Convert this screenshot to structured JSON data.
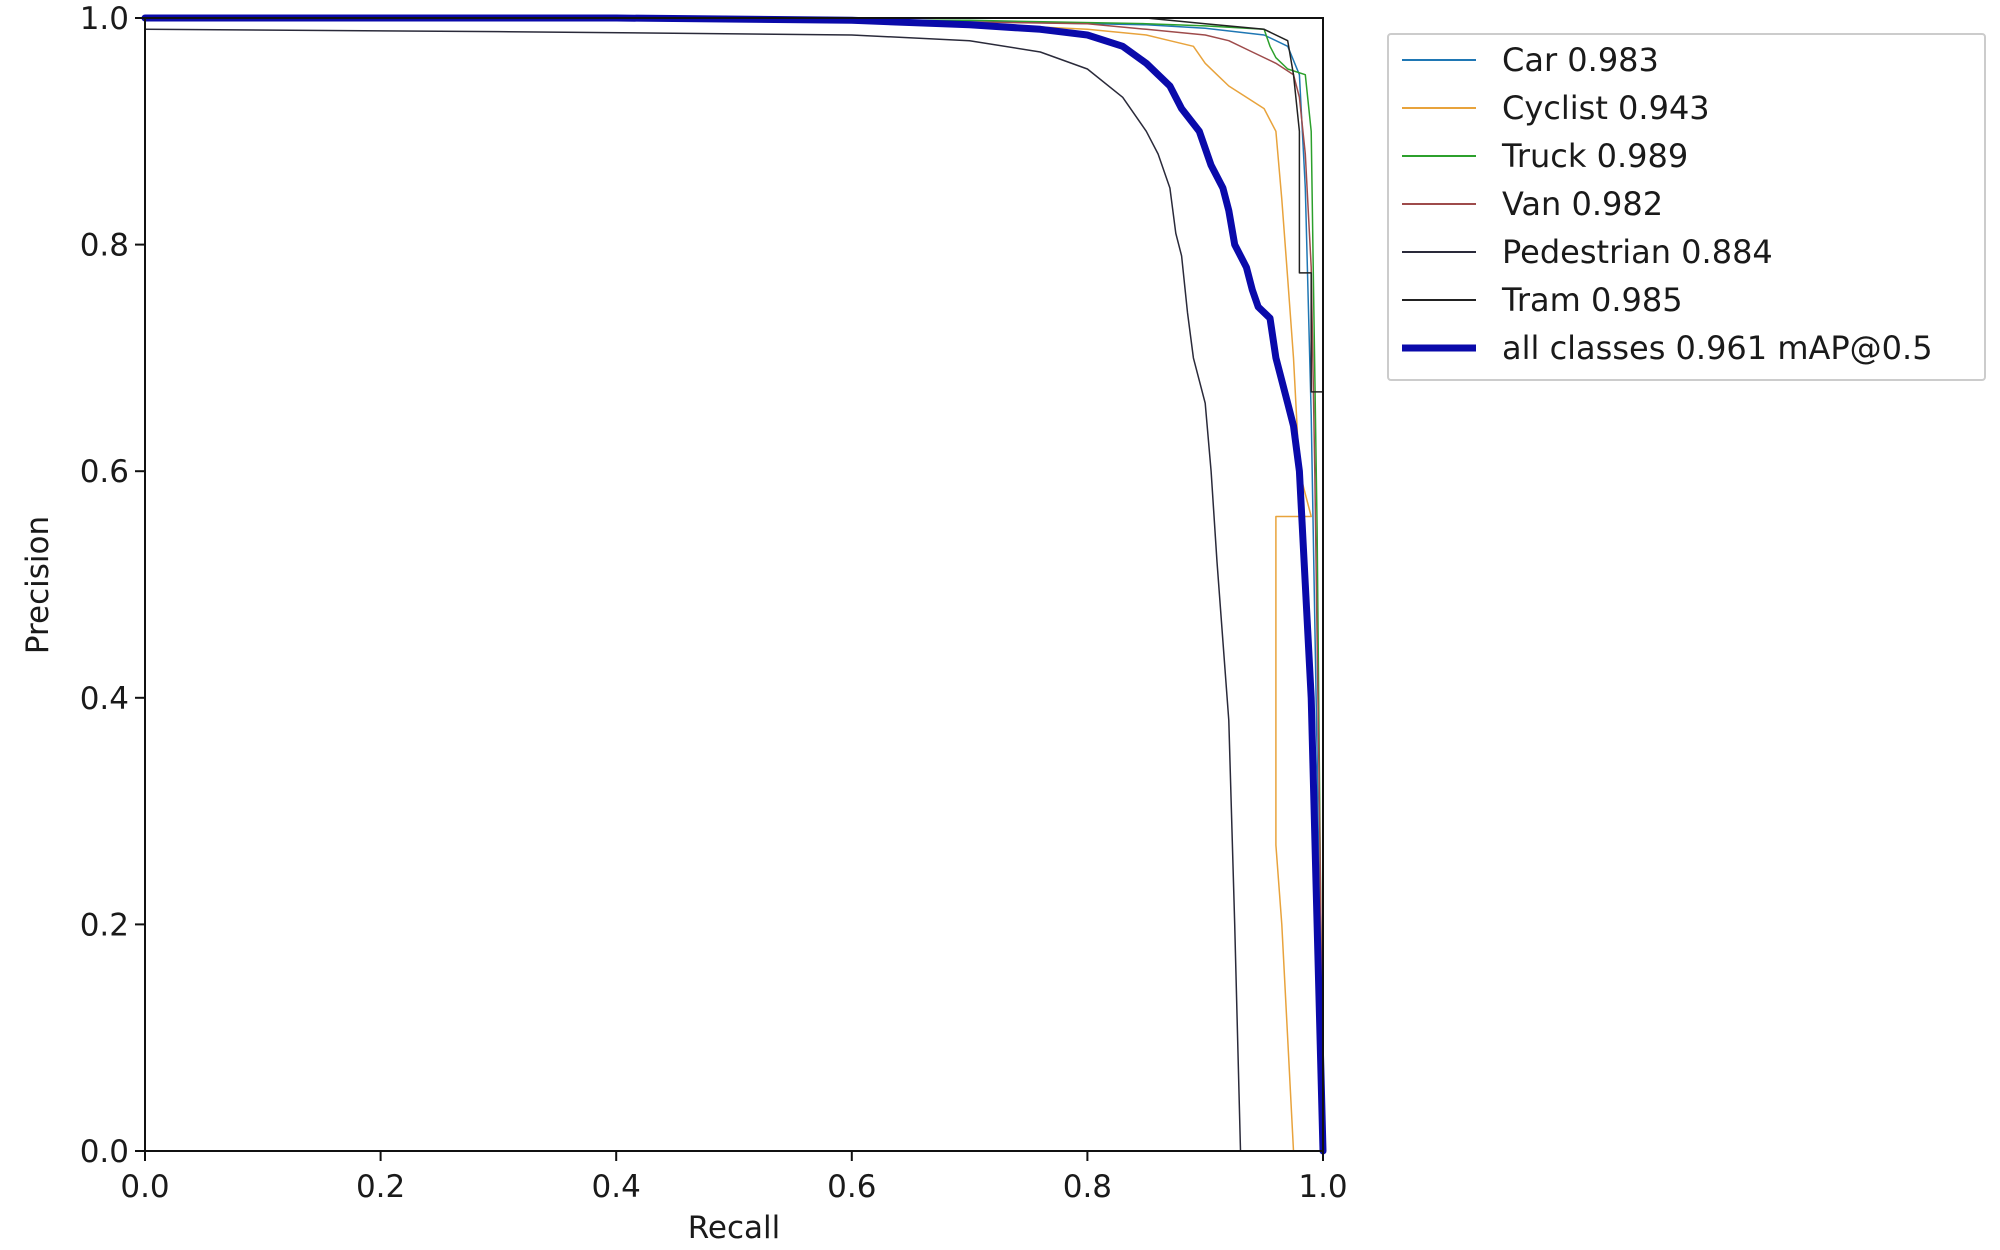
{
  "chart_data": {
    "type": "line",
    "title": "",
    "xlabel": "Recall",
    "ylabel": "Precision",
    "xlim": [
      0,
      1
    ],
    "ylim": [
      0,
      1
    ],
    "xticks": [
      "0.0",
      "0.2",
      "0.4",
      "0.6",
      "0.8",
      "1.0"
    ],
    "yticks": [
      "0.0",
      "0.2",
      "0.4",
      "0.6",
      "0.8",
      "1.0"
    ],
    "grid": false,
    "legend_position": "outside-top-right",
    "series": [
      {
        "name": "Car 0.983",
        "color": "#1f77b4",
        "width": 1.5,
        "points": [
          [
            0,
            1.0
          ],
          [
            0.6,
            0.998
          ],
          [
            0.75,
            0.996
          ],
          [
            0.85,
            0.994
          ],
          [
            0.9,
            0.991
          ],
          [
            0.95,
            0.985
          ],
          [
            0.97,
            0.975
          ],
          [
            0.98,
            0.95
          ],
          [
            0.985,
            0.85
          ],
          [
            0.99,
            0.65
          ],
          [
            0.995,
            0.35
          ],
          [
            1.0,
            0.0
          ]
        ]
      },
      {
        "name": "Cyclist 0.943",
        "color": "#e8a33c",
        "width": 1.5,
        "points": [
          [
            0,
            1.0
          ],
          [
            0.55,
            0.999
          ],
          [
            0.7,
            0.995
          ],
          [
            0.8,
            0.99
          ],
          [
            0.85,
            0.985
          ],
          [
            0.87,
            0.98
          ],
          [
            0.89,
            0.975
          ],
          [
            0.9,
            0.96
          ],
          [
            0.91,
            0.95
          ],
          [
            0.92,
            0.94
          ],
          [
            0.935,
            0.93
          ],
          [
            0.95,
            0.92
          ],
          [
            0.955,
            0.91
          ],
          [
            0.96,
            0.9
          ],
          [
            0.965,
            0.84
          ],
          [
            0.97,
            0.77
          ],
          [
            0.975,
            0.7
          ],
          [
            0.98,
            0.6
          ],
          [
            0.985,
            0.58
          ],
          [
            0.99,
            0.56
          ],
          [
            0.96,
            0.56
          ],
          [
            0.96,
            0.27
          ],
          [
            0.965,
            0.2
          ],
          [
            0.975,
            0.0
          ]
        ]
      },
      {
        "name": "Truck 0.989",
        "color": "#2ca02c",
        "width": 1.5,
        "points": [
          [
            0,
            1.0
          ],
          [
            0.7,
            0.998
          ],
          [
            0.85,
            0.995
          ],
          [
            0.9,
            0.993
          ],
          [
            0.95,
            0.99
          ],
          [
            0.955,
            0.975
          ],
          [
            0.96,
            0.965
          ],
          [
            0.97,
            0.955
          ],
          [
            0.985,
            0.95
          ],
          [
            0.99,
            0.9
          ],
          [
            0.995,
            0.55
          ],
          [
            1.0,
            0.0
          ]
        ]
      },
      {
        "name": "Van 0.982",
        "color": "#9e4b4b",
        "width": 1.5,
        "points": [
          [
            0,
            1.0
          ],
          [
            0.6,
            0.998
          ],
          [
            0.8,
            0.995
          ],
          [
            0.85,
            0.99
          ],
          [
            0.9,
            0.985
          ],
          [
            0.92,
            0.98
          ],
          [
            0.94,
            0.97
          ],
          [
            0.96,
            0.96
          ],
          [
            0.975,
            0.95
          ],
          [
            0.98,
            0.93
          ],
          [
            0.985,
            0.88
          ],
          [
            0.99,
            0.78
          ],
          [
            0.993,
            0.6
          ],
          [
            0.997,
            0.3
          ],
          [
            1.0,
            0.05
          ]
        ]
      },
      {
        "name": "Pedestrian 0.884",
        "color": "#2a2a3a",
        "width": 1.5,
        "points": [
          [
            0,
            0.99
          ],
          [
            0.3,
            0.988
          ],
          [
            0.6,
            0.985
          ],
          [
            0.7,
            0.98
          ],
          [
            0.76,
            0.97
          ],
          [
            0.8,
            0.955
          ],
          [
            0.83,
            0.93
          ],
          [
            0.85,
            0.9
          ],
          [
            0.86,
            0.88
          ],
          [
            0.87,
            0.85
          ],
          [
            0.875,
            0.81
          ],
          [
            0.88,
            0.79
          ],
          [
            0.885,
            0.74
          ],
          [
            0.89,
            0.7
          ],
          [
            0.9,
            0.66
          ],
          [
            0.905,
            0.6
          ],
          [
            0.91,
            0.52
          ],
          [
            0.915,
            0.45
          ],
          [
            0.92,
            0.38
          ],
          [
            0.925,
            0.2
          ],
          [
            0.93,
            0.0
          ]
        ]
      },
      {
        "name": "Tram 0.985",
        "color": "#222222",
        "width": 1.5,
        "points": [
          [
            0,
            1.0
          ],
          [
            0.4,
            1.0
          ],
          [
            0.85,
            1.0
          ],
          [
            0.9,
            0.995
          ],
          [
            0.95,
            0.99
          ],
          [
            0.97,
            0.98
          ],
          [
            0.975,
            0.95
          ],
          [
            0.98,
            0.9
          ],
          [
            0.98,
            0.775
          ],
          [
            0.99,
            0.775
          ],
          [
            0.99,
            0.67
          ],
          [
            1.0,
            0.67
          ],
          [
            1.0,
            0.0
          ]
        ]
      },
      {
        "name": "all classes 0.961 mAP@0.5",
        "color": "#0a0aaa",
        "width": 7,
        "points": [
          [
            0,
            1.0
          ],
          [
            0.4,
            1.0
          ],
          [
            0.6,
            0.998
          ],
          [
            0.7,
            0.994
          ],
          [
            0.76,
            0.99
          ],
          [
            0.8,
            0.985
          ],
          [
            0.83,
            0.975
          ],
          [
            0.85,
            0.96
          ],
          [
            0.87,
            0.94
          ],
          [
            0.88,
            0.92
          ],
          [
            0.895,
            0.9
          ],
          [
            0.905,
            0.87
          ],
          [
            0.915,
            0.85
          ],
          [
            0.92,
            0.83
          ],
          [
            0.925,
            0.8
          ],
          [
            0.935,
            0.78
          ],
          [
            0.94,
            0.76
          ],
          [
            0.945,
            0.745
          ],
          [
            0.955,
            0.735
          ],
          [
            0.96,
            0.7
          ],
          [
            0.97,
            0.66
          ],
          [
            0.975,
            0.64
          ],
          [
            0.98,
            0.6
          ],
          [
            0.985,
            0.5
          ],
          [
            0.99,
            0.4
          ],
          [
            0.995,
            0.2
          ],
          [
            1.0,
            0.0
          ]
        ]
      }
    ]
  }
}
